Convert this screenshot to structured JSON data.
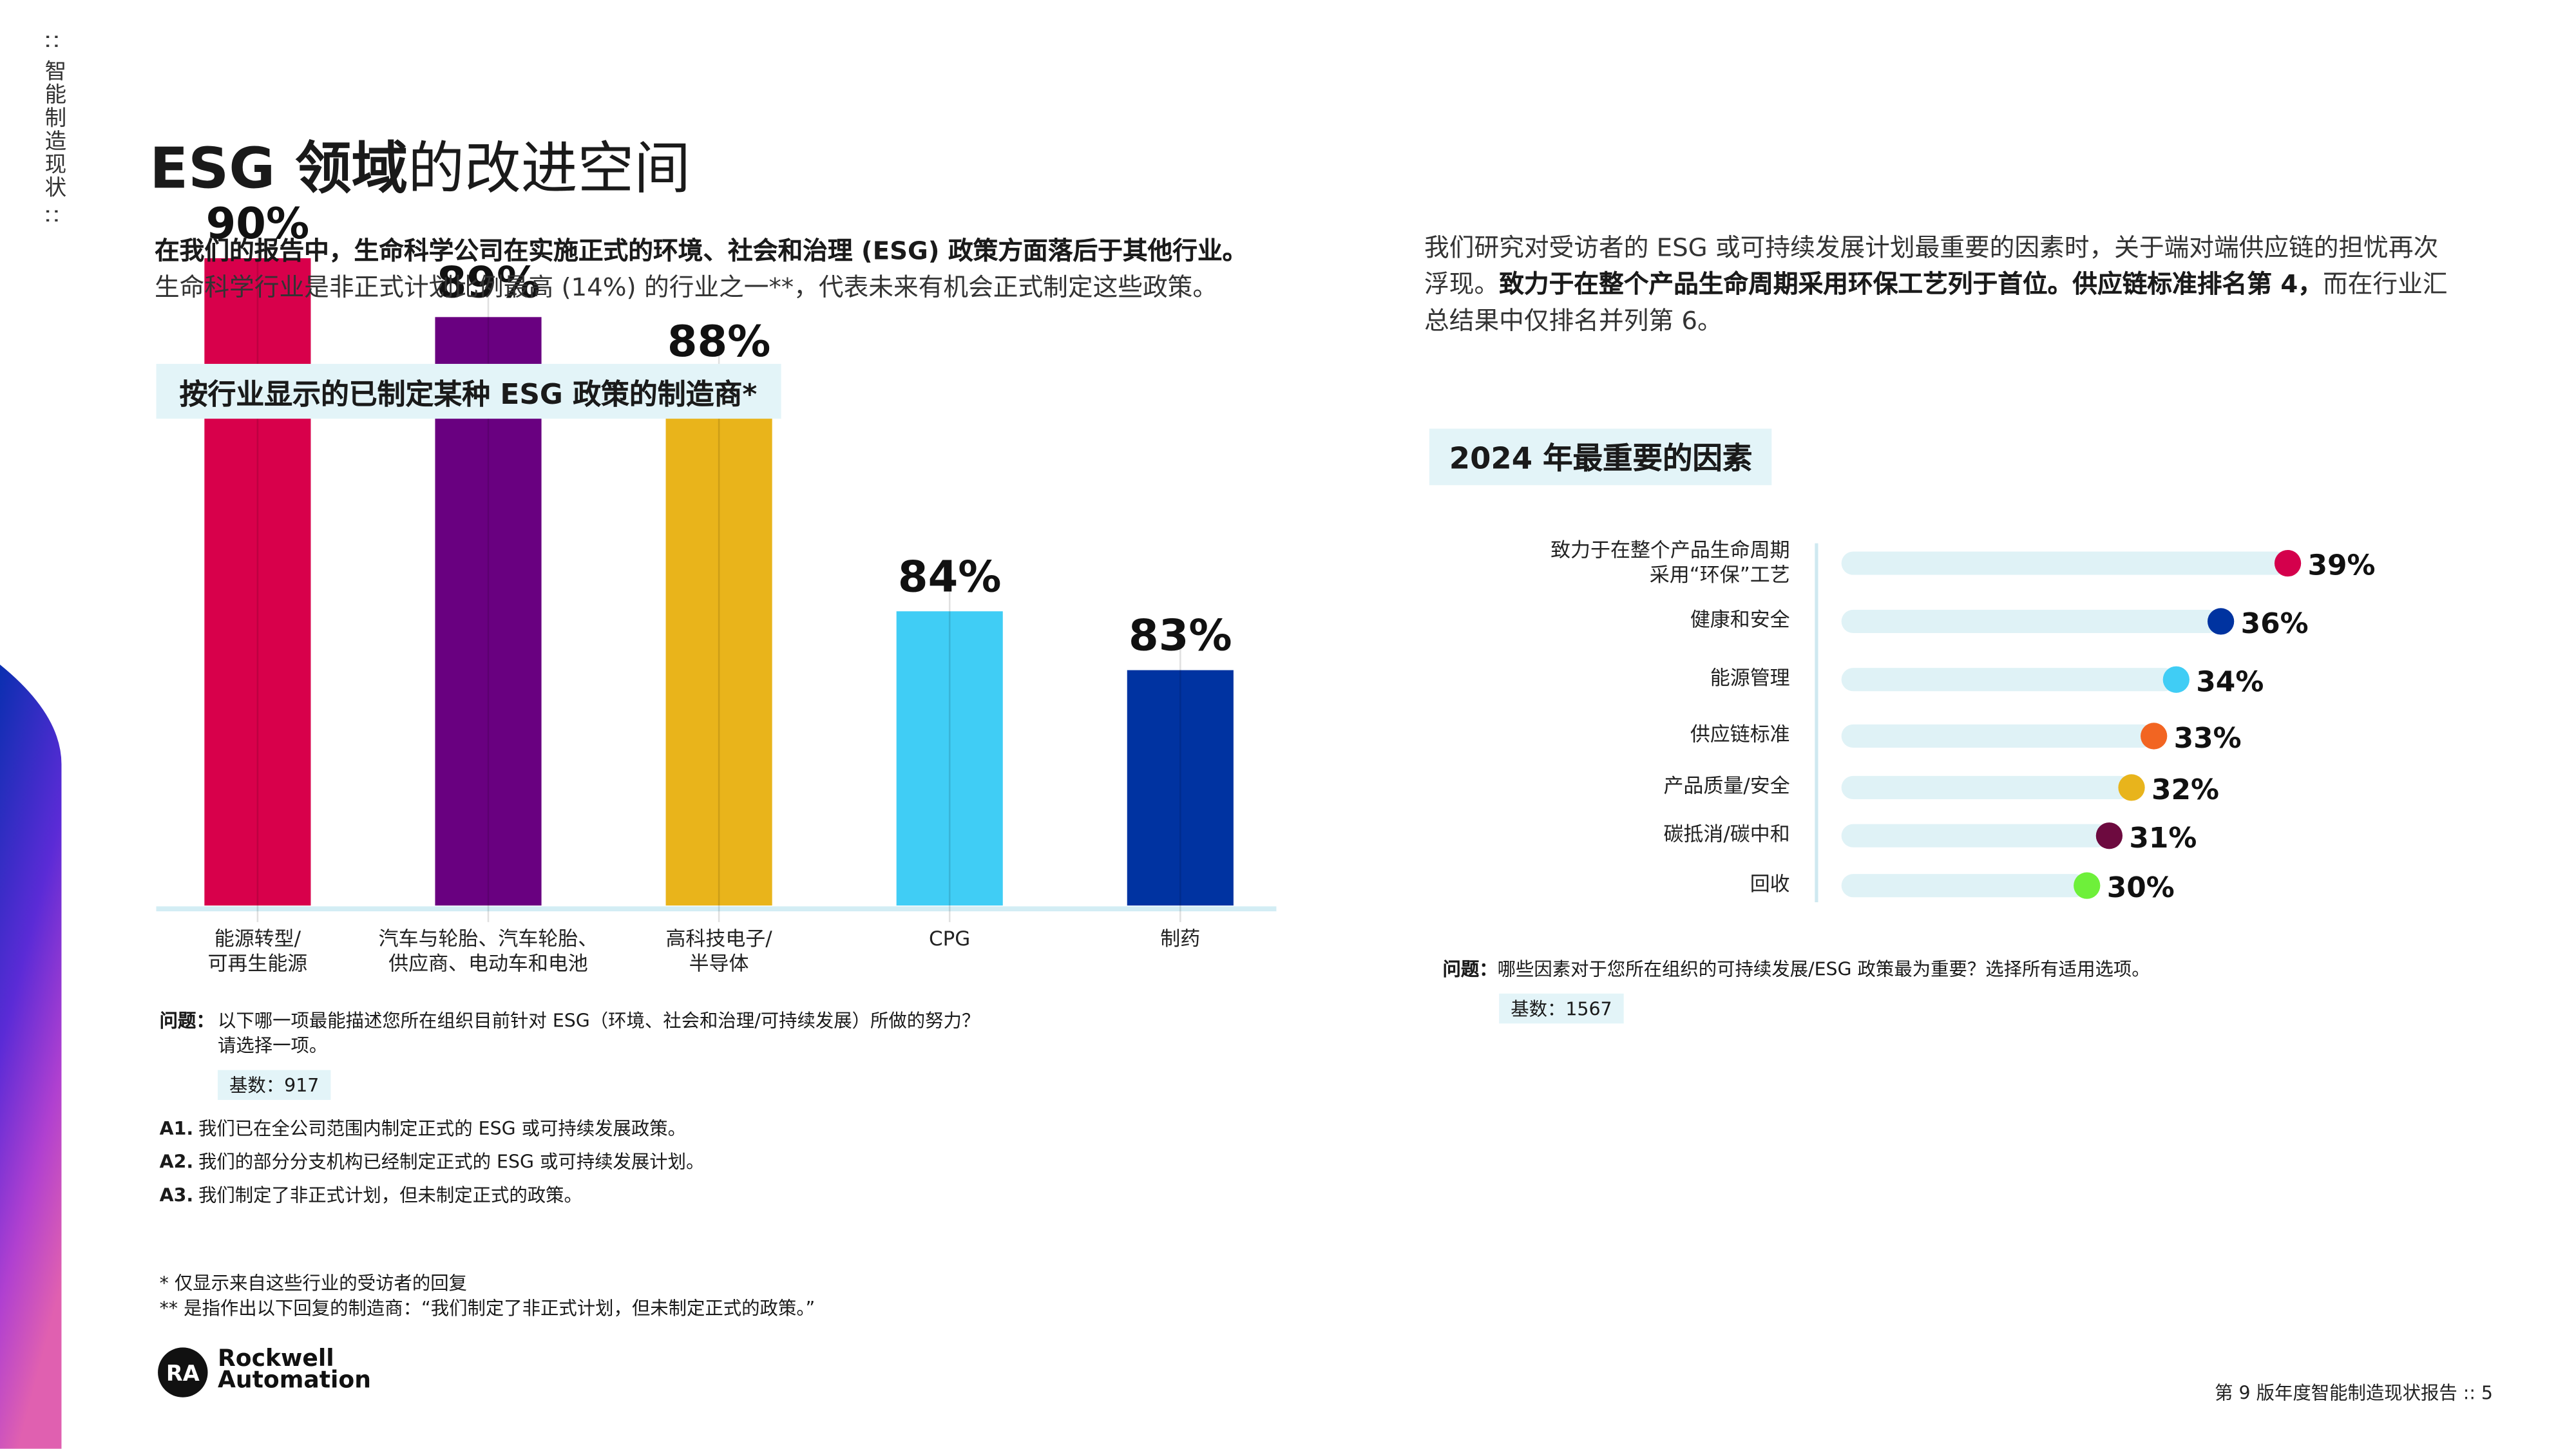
{
  "sidebar": ":: 智能制造现状 ::",
  "title_bold": "ESG 领域",
  "title_rest": "的改进空间",
  "left_intro_bold": "在我们的报告中，生命科学公司在实施正式的环境、社会和治理 (ESG) 政策方面落后于其他行业。",
  "left_intro": "生命科学行业是非正式计划比例最高 (14%) 的行业之一**，代表未来有机会正式制定这些政策。",
  "right_intro_a": "我们研究对受访者的 ESG 或可持续发展计划最重要的因素时，关于端对端供应链的担忧再次浮现。",
  "right_intro_bold": "致力于在整个产品生命周期采用环保工艺列于首位。供应链标准排名第 4，",
  "right_intro_b": "而在行业汇总结果中仅排名并列第 6。",
  "chart_data": [
    {
      "type": "bar",
      "title": "按行业显示的已制定某种 ESG 政策的制造商*",
      "categories": [
        "能源转型/\n可再生能源",
        "汽车与轮胎、汽车轮胎、\n供应商、电动车和电池",
        "高科技电子/\n半导体",
        "CPG",
        "制药"
      ],
      "values": [
        90,
        89,
        88,
        84,
        83
      ],
      "value_labels": [
        "90%",
        "89%",
        "88%",
        "84%",
        "83%"
      ],
      "colors": [
        "#d8004b",
        "#690080",
        "#e9b41b",
        "#40cdf5",
        "#0033a1"
      ],
      "ylim": [
        79,
        91
      ]
    },
    {
      "type": "dot",
      "title": "2024 年最重要的因素",
      "categories": [
        "致力于在整个产品生命周期\n采用“环保”工艺",
        "健康和安全",
        "能源管理",
        "供应链标准",
        "产品质量/安全",
        "碳抵消/碳中和",
        "回收"
      ],
      "values": [
        39,
        36,
        34,
        33,
        32,
        31,
        30
      ],
      "value_labels": [
        "39%",
        "36%",
        "34%",
        "33%",
        "32%",
        "31%",
        "30%"
      ],
      "colors": [
        "#d4004c",
        "#0033a0",
        "#40cdf5",
        "#f26522",
        "#e8b41c",
        "#6d0a3f",
        "#6ef03a"
      ],
      "xlim": [
        19,
        40
      ]
    }
  ],
  "left_notes": {
    "question_label": "问题：",
    "question": "以下哪一项最能描述您所在组织目前针对 ESG（环境、社会和治理/可持续发展）所做的努力？\n请选择一项。",
    "base": "基数：917",
    "answers": [
      {
        "label": "A1.",
        "text": "我们已在全公司范围内制定正式的 ESG 或可持续发展政策。"
      },
      {
        "label": "A2.",
        "text": "我们的部分分支机构已经制定正式的 ESG 或可持续发展计划。"
      },
      {
        "label": "A3.",
        "text": "我们制定了非正式计划，但未制定正式的政策。"
      }
    ],
    "footnotes": [
      "* 仅显示来自这些行业的受访者的回复",
      "** 是指作出以下回复的制造商：“我们制定了非正式计划，但未制定正式的政策。”"
    ]
  },
  "right_notes": {
    "question_label": "问题：",
    "question": "哪些因素对于您所在组织的可持续发展/ESG 政策最为重要？选择所有适用选项。",
    "base": "基数：1567"
  },
  "logo": {
    "mark": "RA",
    "line1": "Rockwell",
    "line2": "Automation"
  },
  "footer": "第 9 版年度智能制造现状报告 :: 5"
}
